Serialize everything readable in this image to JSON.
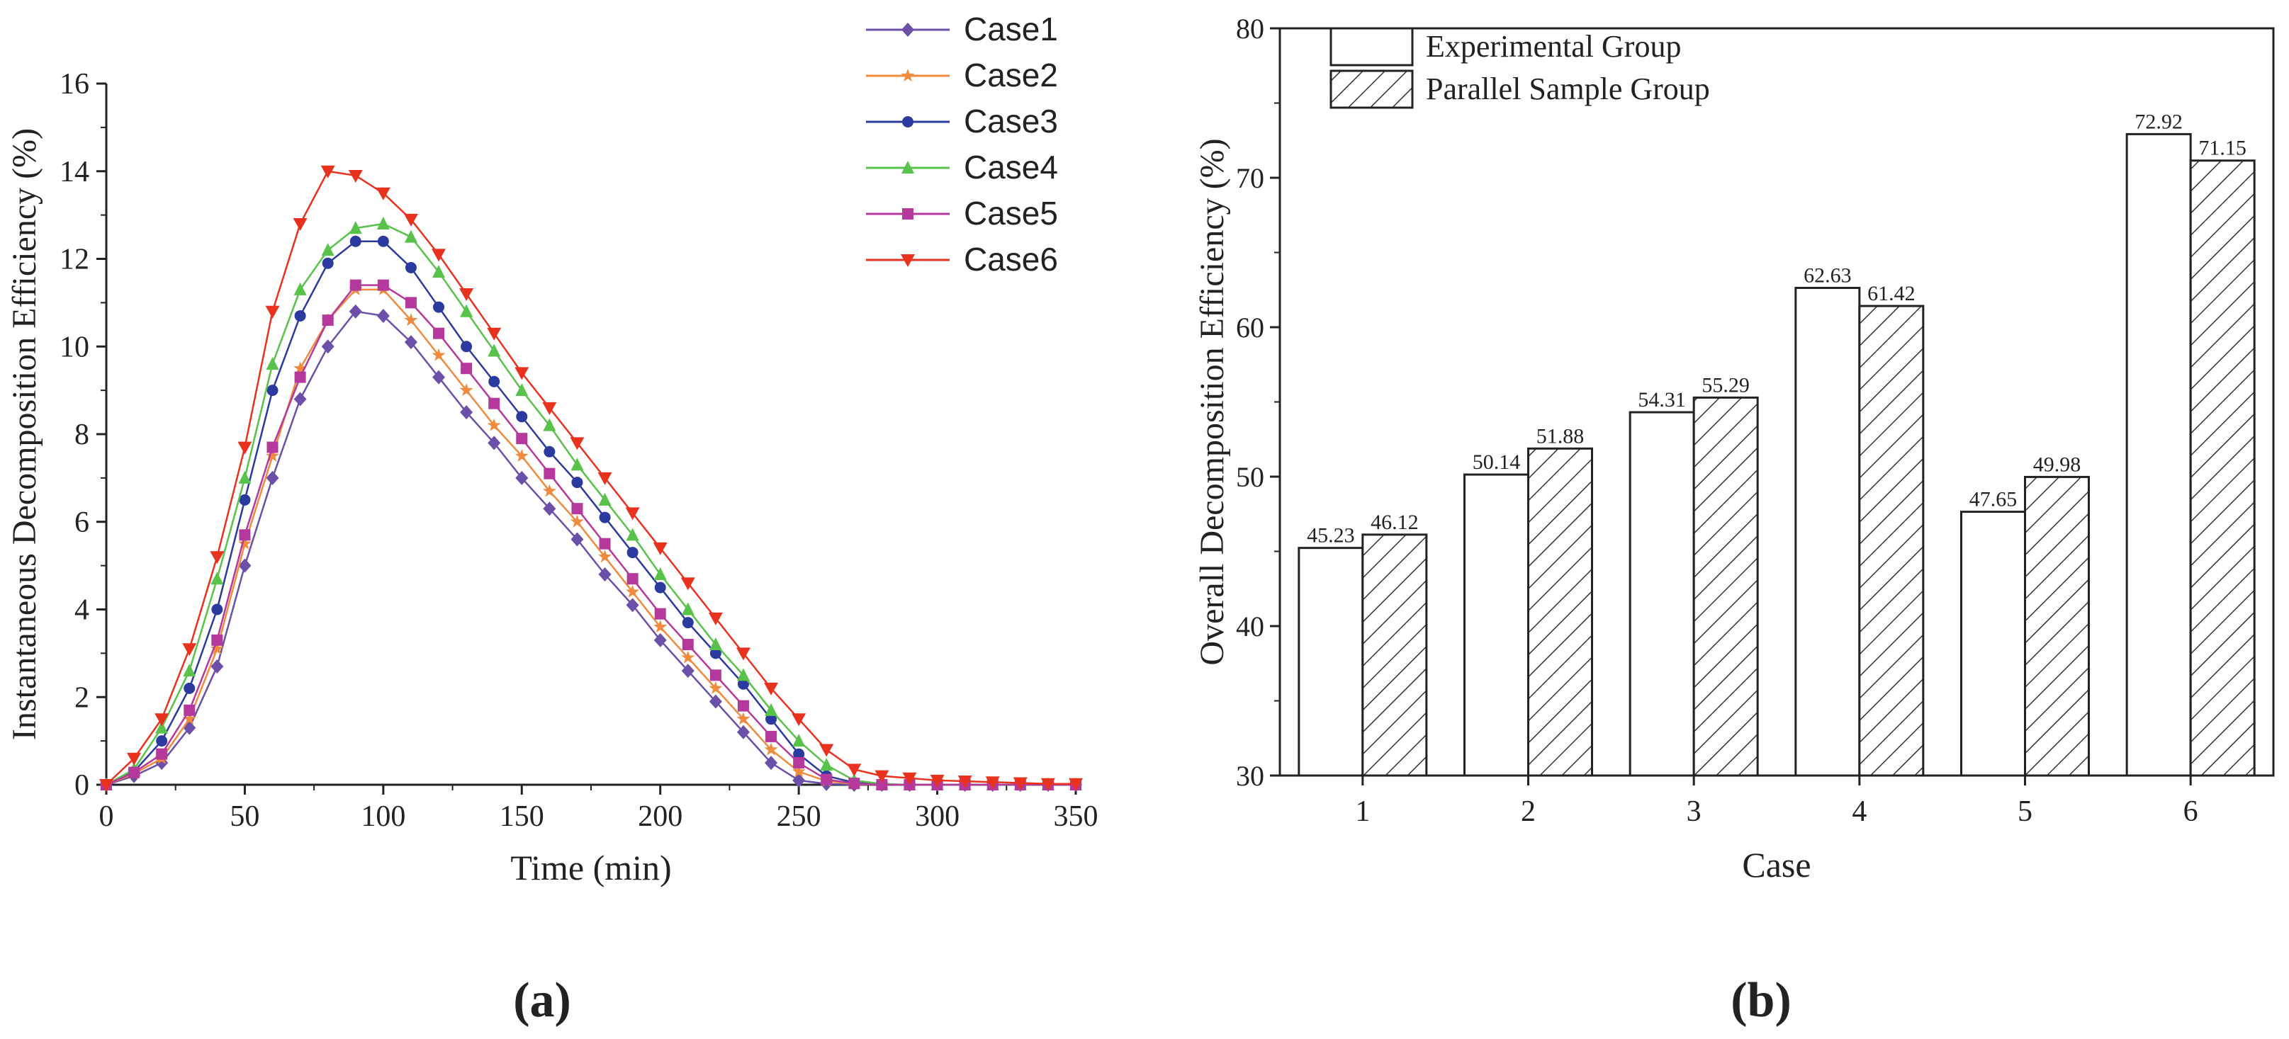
{
  "chart_data": [
    {
      "type": "line",
      "panel_label": "(a)",
      "title": "",
      "xlabel": "Time (min)",
      "ylabel": "Instantaneous Decomposition Efficiency (%)",
      "xlim": [
        0,
        350
      ],
      "ylim": [
        0,
        16
      ],
      "xticks": [
        0,
        50,
        100,
        150,
        200,
        250,
        300,
        350
      ],
      "yticks": [
        0,
        2,
        4,
        6,
        8,
        10,
        12,
        14,
        16
      ],
      "legend_position": "top-right",
      "x": [
        0,
        10,
        20,
        30,
        40,
        50,
        60,
        70,
        80,
        90,
        100,
        110,
        120,
        130,
        140,
        150,
        160,
        170,
        180,
        190,
        200,
        210,
        220,
        230,
        240,
        250,
        260,
        270,
        280,
        290,
        300,
        310,
        320,
        330,
        340,
        350
      ],
      "series": [
        {
          "name": "Case1",
          "color": "#6b4fa8",
          "marker": "diamond",
          "values": [
            0,
            0.2,
            0.5,
            1.3,
            2.7,
            5.0,
            7.0,
            8.8,
            10.0,
            10.8,
            10.7,
            10.1,
            9.3,
            8.5,
            7.8,
            7.0,
            6.3,
            5.6,
            4.8,
            4.1,
            3.3,
            2.6,
            1.9,
            1.2,
            0.5,
            0.1,
            0.02,
            0,
            0,
            0,
            0,
            0,
            0,
            0,
            0,
            0
          ]
        },
        {
          "name": "Case2",
          "color": "#f08a3c",
          "marker": "star",
          "values": [
            0,
            0.25,
            0.6,
            1.5,
            3.1,
            5.5,
            7.5,
            9.5,
            10.6,
            11.3,
            11.3,
            10.6,
            9.8,
            9.0,
            8.2,
            7.5,
            6.7,
            6.0,
            5.2,
            4.4,
            3.6,
            2.9,
            2.2,
            1.5,
            0.8,
            0.3,
            0.08,
            0.02,
            0,
            0,
            0,
            0,
            0,
            0,
            0,
            0
          ]
        },
        {
          "name": "Case3",
          "color": "#2b3a9e",
          "marker": "circle",
          "values": [
            0,
            0.3,
            1.0,
            2.2,
            4.0,
            6.5,
            9.0,
            10.7,
            11.9,
            12.4,
            12.4,
            11.8,
            10.9,
            10.0,
            9.2,
            8.4,
            7.6,
            6.9,
            6.1,
            5.3,
            4.5,
            3.7,
            3.0,
            2.3,
            1.5,
            0.7,
            0.2,
            0.05,
            0,
            0,
            0,
            0,
            0,
            0,
            0,
            0
          ]
        },
        {
          "name": "Case4",
          "color": "#58c24a",
          "marker": "triangle-up",
          "values": [
            0,
            0.35,
            1.3,
            2.6,
            4.7,
            7.0,
            9.6,
            11.3,
            12.2,
            12.7,
            12.8,
            12.5,
            11.7,
            10.8,
            9.9,
            9.0,
            8.2,
            7.3,
            6.5,
            5.7,
            4.8,
            4.0,
            3.2,
            2.5,
            1.7,
            1.0,
            0.45,
            0.1,
            0.02,
            0,
            0,
            0,
            0,
            0,
            0,
            0
          ]
        },
        {
          "name": "Case5",
          "color": "#b5399c",
          "marker": "square",
          "values": [
            0,
            0.28,
            0.7,
            1.7,
            3.3,
            5.7,
            7.7,
            9.3,
            10.6,
            11.4,
            11.4,
            11.0,
            10.3,
            9.5,
            8.7,
            7.9,
            7.1,
            6.3,
            5.5,
            4.7,
            3.9,
            3.2,
            2.5,
            1.8,
            1.1,
            0.5,
            0.12,
            0.03,
            0,
            0,
            0,
            0,
            0,
            0,
            0,
            0
          ]
        },
        {
          "name": "Case6",
          "color": "#e8321e",
          "marker": "triangle-down",
          "values": [
            0,
            0.6,
            1.5,
            3.1,
            5.2,
            7.7,
            10.8,
            12.8,
            14.0,
            13.9,
            13.5,
            12.9,
            12.1,
            11.2,
            10.3,
            9.4,
            8.6,
            7.8,
            7.0,
            6.2,
            5.4,
            4.6,
            3.8,
            3.0,
            2.2,
            1.5,
            0.8,
            0.35,
            0.2,
            0.15,
            0.1,
            0.08,
            0.06,
            0.04,
            0.02,
            0.02
          ]
        }
      ]
    },
    {
      "type": "bar",
      "panel_label": "(b)",
      "title": "",
      "xlabel": "Case",
      "ylabel": "Overall Decomposition Efficiency (%)",
      "ylim": [
        30,
        80
      ],
      "yticks": [
        30,
        40,
        50,
        60,
        70,
        80
      ],
      "categories": [
        "1",
        "2",
        "3",
        "4",
        "5",
        "6"
      ],
      "legend_position": "top-left",
      "series": [
        {
          "name": "Experimental Group",
          "fill": "plain",
          "values": [
            45.23,
            50.14,
            54.31,
            62.63,
            47.65,
            72.92
          ],
          "labels": [
            "45.23",
            "50.14",
            "54.31",
            "62.63",
            "47.65",
            "72.92"
          ]
        },
        {
          "name": "Parallel Sample Group",
          "fill": "hatched",
          "values": [
            46.12,
            51.88,
            55.29,
            61.42,
            49.98,
            71.15
          ],
          "labels": [
            "46.12",
            "51.88",
            "55.29",
            "61.42",
            "49.98",
            "71.15"
          ]
        }
      ]
    }
  ]
}
